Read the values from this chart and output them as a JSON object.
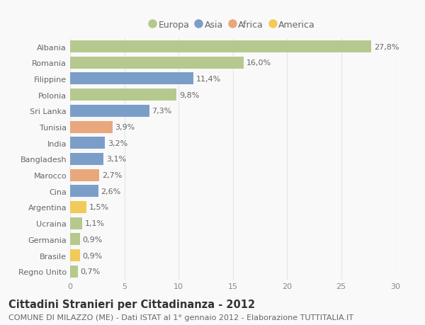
{
  "countries": [
    "Albania",
    "Romania",
    "Filippine",
    "Polonia",
    "Sri Lanka",
    "Tunisia",
    "India",
    "Bangladesh",
    "Marocco",
    "Cina",
    "Argentina",
    "Ucraina",
    "Germania",
    "Brasile",
    "Regno Unito"
  ],
  "values": [
    27.8,
    16.0,
    11.4,
    9.8,
    7.3,
    3.9,
    3.2,
    3.1,
    2.7,
    2.6,
    1.5,
    1.1,
    0.9,
    0.9,
    0.7
  ],
  "labels": [
    "27,8%",
    "16,0%",
    "11,4%",
    "9,8%",
    "7,3%",
    "3,9%",
    "3,2%",
    "3,1%",
    "2,7%",
    "2,6%",
    "1,5%",
    "1,1%",
    "0,9%",
    "0,9%",
    "0,7%"
  ],
  "continents": [
    "Europa",
    "Europa",
    "Asia",
    "Europa",
    "Asia",
    "Africa",
    "Asia",
    "Asia",
    "Africa",
    "Asia",
    "America",
    "Europa",
    "Europa",
    "America",
    "Europa"
  ],
  "colors": {
    "Europa": "#b5c98e",
    "Asia": "#7b9ec9",
    "Africa": "#e8a87c",
    "America": "#f0cb5a"
  },
  "legend_order": [
    "Europa",
    "Asia",
    "Africa",
    "America"
  ],
  "xlim": [
    0,
    30
  ],
  "xticks": [
    0,
    5,
    10,
    15,
    20,
    25,
    30
  ],
  "title": "Cittadini Stranieri per Cittadinanza - 2012",
  "subtitle": "COMUNE DI MILAZZO (ME) - Dati ISTAT al 1° gennaio 2012 - Elaborazione TUTTITALIA.IT",
  "background_color": "#f9f9f9",
  "grid_color": "#e8e8e8",
  "bar_height": 0.75,
  "title_fontsize": 10.5,
  "subtitle_fontsize": 8,
  "label_fontsize": 8,
  "tick_fontsize": 8,
  "legend_fontsize": 9
}
